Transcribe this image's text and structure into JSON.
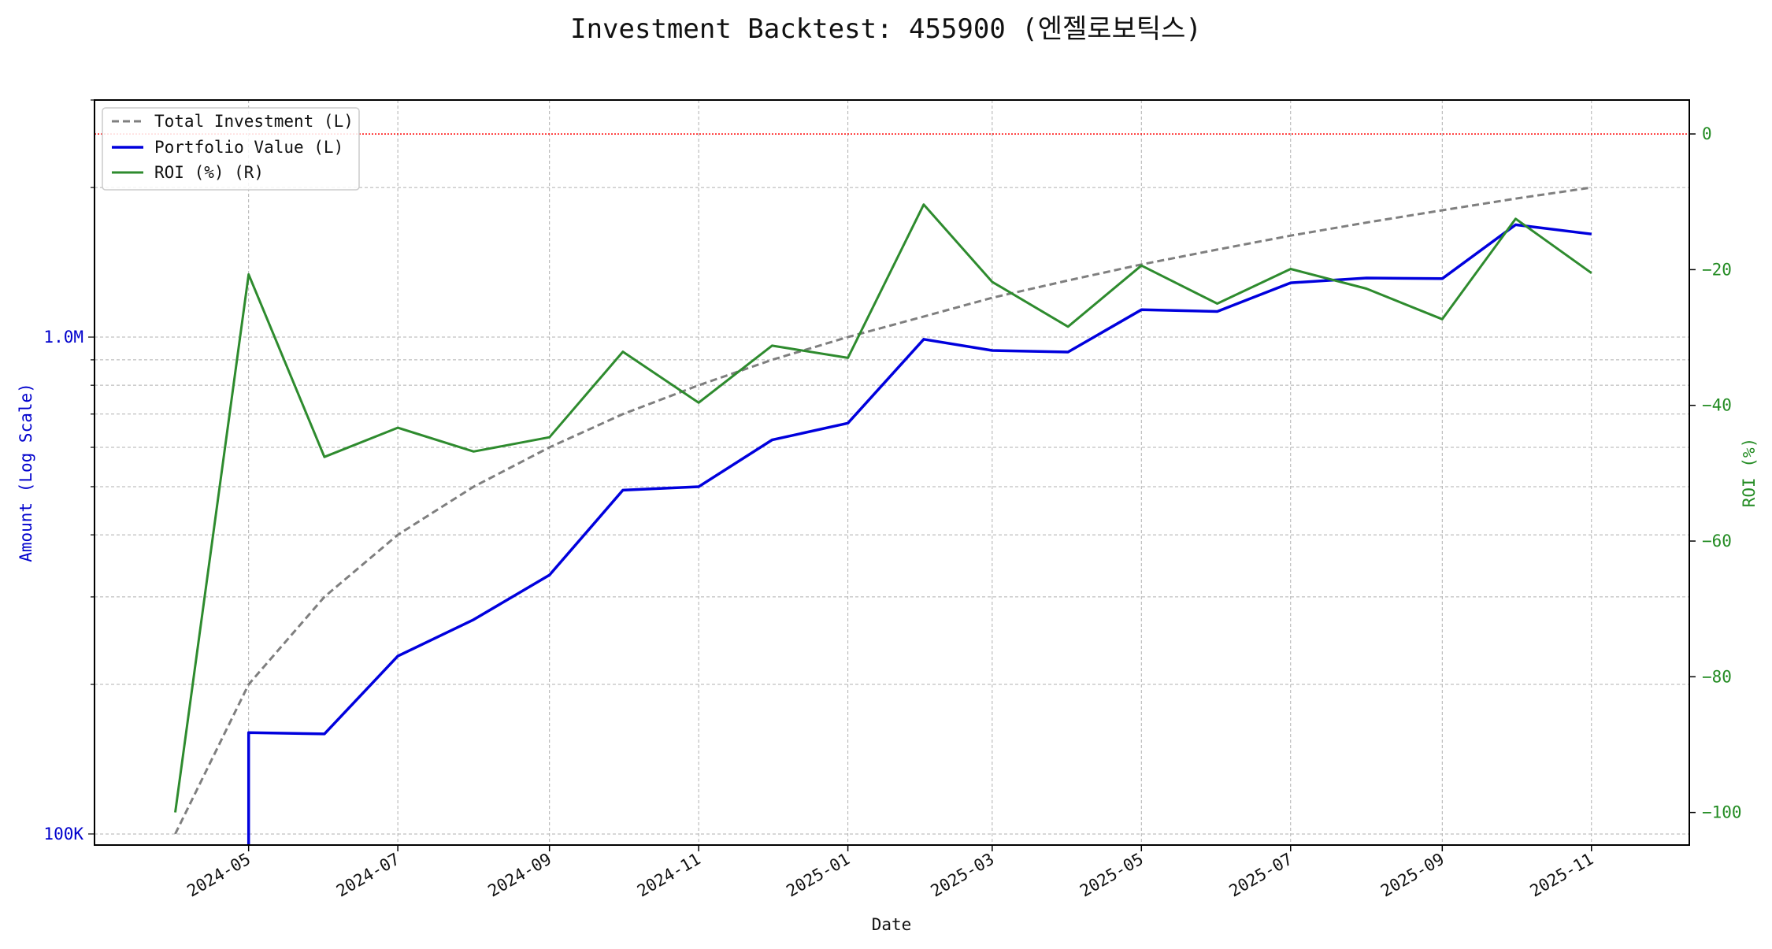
{
  "chart_data": {
    "type": "line",
    "title": "Investment Backtest: 455900 (엔젤로보틱스)",
    "xlabel": "Date",
    "ylabel_left": "Amount (Log Scale)",
    "ylabel_right": "ROI (%)",
    "left_scale": "log",
    "left_ylim": [
      95000,
      3000000
    ],
    "left_ticks": [
      {
        "value": 100000,
        "label": "100K"
      },
      {
        "value": 1000000,
        "label": "1.0M"
      }
    ],
    "right_ylim": [
      -104.8,
      5
    ],
    "right_ticks": [
      {
        "value": 0,
        "label": "0"
      },
      {
        "value": -20,
        "label": "−20"
      },
      {
        "value": -40,
        "label": "−40"
      },
      {
        "value": -60,
        "label": "−60"
      },
      {
        "value": -80,
        "label": "−80"
      },
      {
        "value": -100,
        "label": "−100"
      }
    ],
    "xlim": [
      "2024-02-28",
      "2025-12-11"
    ],
    "x_ticks": [
      "2024-05",
      "2024-07",
      "2024-09",
      "2024-11",
      "2025-01",
      "2025-03",
      "2025-05",
      "2025-07",
      "2025-09",
      "2025-11"
    ],
    "grid": true,
    "legend": "upper-left",
    "reference_line": {
      "axis": "right",
      "value": 0,
      "color": "#ff0000"
    },
    "x": [
      "2024-04-01",
      "2024-05-01",
      "2024-06-01",
      "2024-07-01",
      "2024-08-01",
      "2024-09-01",
      "2024-10-01",
      "2024-11-01",
      "2024-12-01",
      "2025-01-01",
      "2025-02-01",
      "2025-03-01",
      "2025-04-01",
      "2025-05-01",
      "2025-06-01",
      "2025-07-01",
      "2025-08-01",
      "2025-09-01",
      "2025-10-01",
      "2025-11-01"
    ],
    "series": [
      {
        "name": "Total Investment (L)",
        "axis": "left",
        "color": "#7f7f7f",
        "style": "dashed",
        "values": [
          100000,
          200000,
          300000,
          400000,
          500000,
          600000,
          700000,
          800000,
          900000,
          1000000,
          1100000,
          1200000,
          1300000,
          1400000,
          1500000,
          1600000,
          1700000,
          1800000,
          1900000,
          2000000
        ]
      },
      {
        "name": "Portfolio Value (L)",
        "axis": "left",
        "color": "#0000dd",
        "style": "solid",
        "values": [
          null,
          160000,
          159000,
          228000,
          270000,
          332000,
          492000,
          500000,
          621000,
          671000,
          990000,
          940000,
          933000,
          1135000,
          1126000,
          1286000,
          1315000,
          1311000,
          1683000,
          1612000
        ]
      },
      {
        "name": "ROI (%) (R)",
        "axis": "right",
        "color": "#2e8b2e",
        "style": "solid",
        "values": [
          -100,
          -20.7,
          -47.6,
          -43.3,
          -46.8,
          -44.7,
          -32.1,
          -39.6,
          -31.2,
          -33.0,
          -10.4,
          -21.8,
          -28.4,
          -19.4,
          -25.0,
          -19.9,
          -22.8,
          -27.3,
          -12.5,
          -20.5
        ]
      }
    ],
    "portfolio_drop": {
      "date": "2024-05-01",
      "from": 160000,
      "to": 95000
    }
  }
}
